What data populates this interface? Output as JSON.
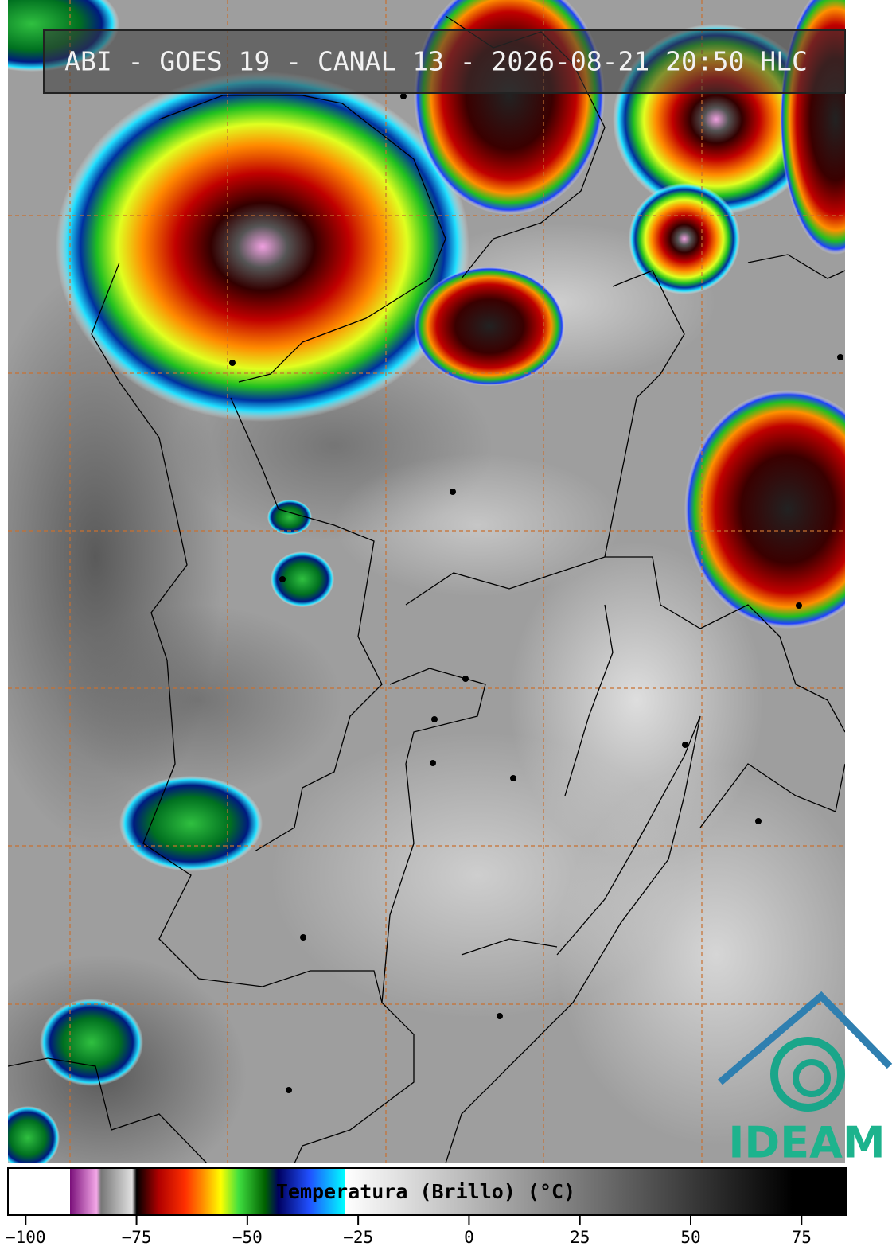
{
  "header": {
    "title": "ABI - GOES 19 - CANAL 13 - 2026-08-21 20:50 HLC"
  },
  "colorbar": {
    "label": "Temperatura (Brillo) (°C)",
    "lim": [
      -104,
      85
    ],
    "ticks": [
      {
        "value": -100,
        "label": "−100"
      },
      {
        "value": -75,
        "label": "−75"
      },
      {
        "value": -50,
        "label": "−50"
      },
      {
        "value": -25,
        "label": "−25"
      },
      0,
      25,
      50,
      75
    ],
    "colorscale": [
      [
        -104,
        "#ffffff"
      ],
      [
        -90,
        "#ffffff"
      ],
      [
        -90,
        "#7a107a"
      ],
      [
        -84,
        "#f4a8e8"
      ],
      [
        -83,
        "#777777"
      ],
      [
        -76,
        "#e0e0e0"
      ],
      [
        -75,
        "#000000"
      ],
      [
        -70,
        "#b00000"
      ],
      [
        -64,
        "#ff3000"
      ],
      [
        -60,
        "#ff9000"
      ],
      [
        -56,
        "#ffff00"
      ],
      [
        -52,
        "#40e040"
      ],
      [
        -46,
        "#006000"
      ],
      [
        -43,
        "#000060"
      ],
      [
        -36,
        "#2050ff"
      ],
      [
        -28,
        "#00ffff"
      ],
      [
        -28,
        "#ffffff"
      ],
      [
        73,
        "#000000"
      ],
      [
        85,
        "#000000"
      ]
    ]
  },
  "logo": {
    "text": "IDEAM"
  }
}
